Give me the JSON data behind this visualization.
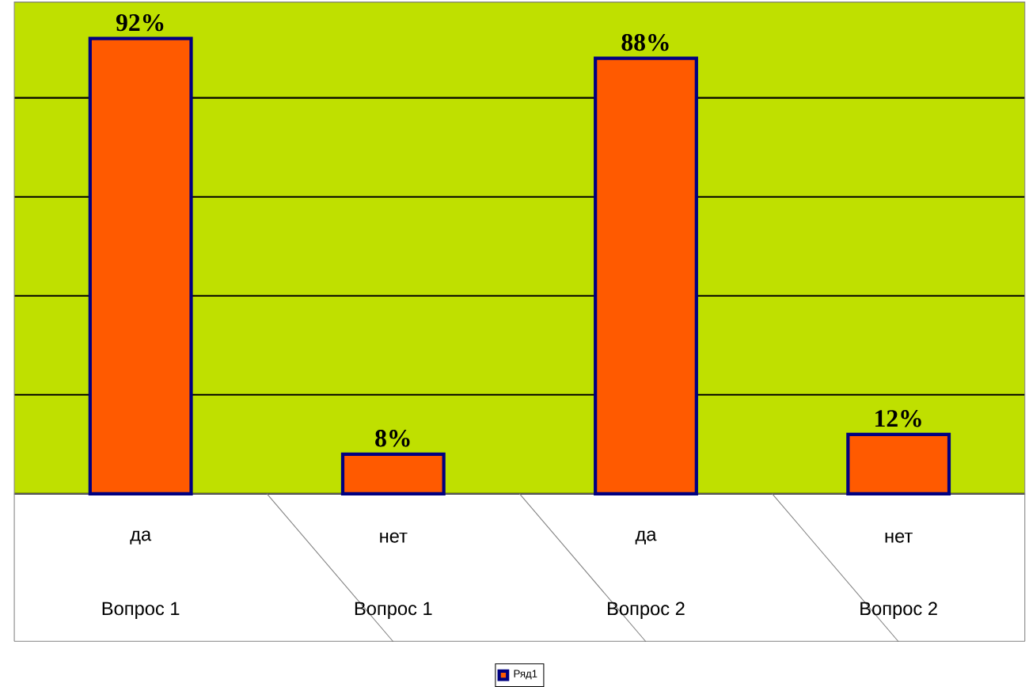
{
  "chart_data": {
    "type": "bar",
    "categories": [
      "да",
      "нет",
      "да",
      "нет"
    ],
    "series": [
      {
        "name": "Ряд1",
        "color": "#ff5a00",
        "values": [
          92,
          8,
          88,
          12
        ],
        "value_labels": [
          "92%",
          "8%",
          "88%",
          "12%"
        ]
      }
    ],
    "annotations": [
      "Вопрос 1",
      "Вопрос 1",
      "Вопрос 2",
      "Вопрос 2"
    ],
    "tick_labels": "x",
    "grid": "y",
    "legend": "bottom"
  }
}
